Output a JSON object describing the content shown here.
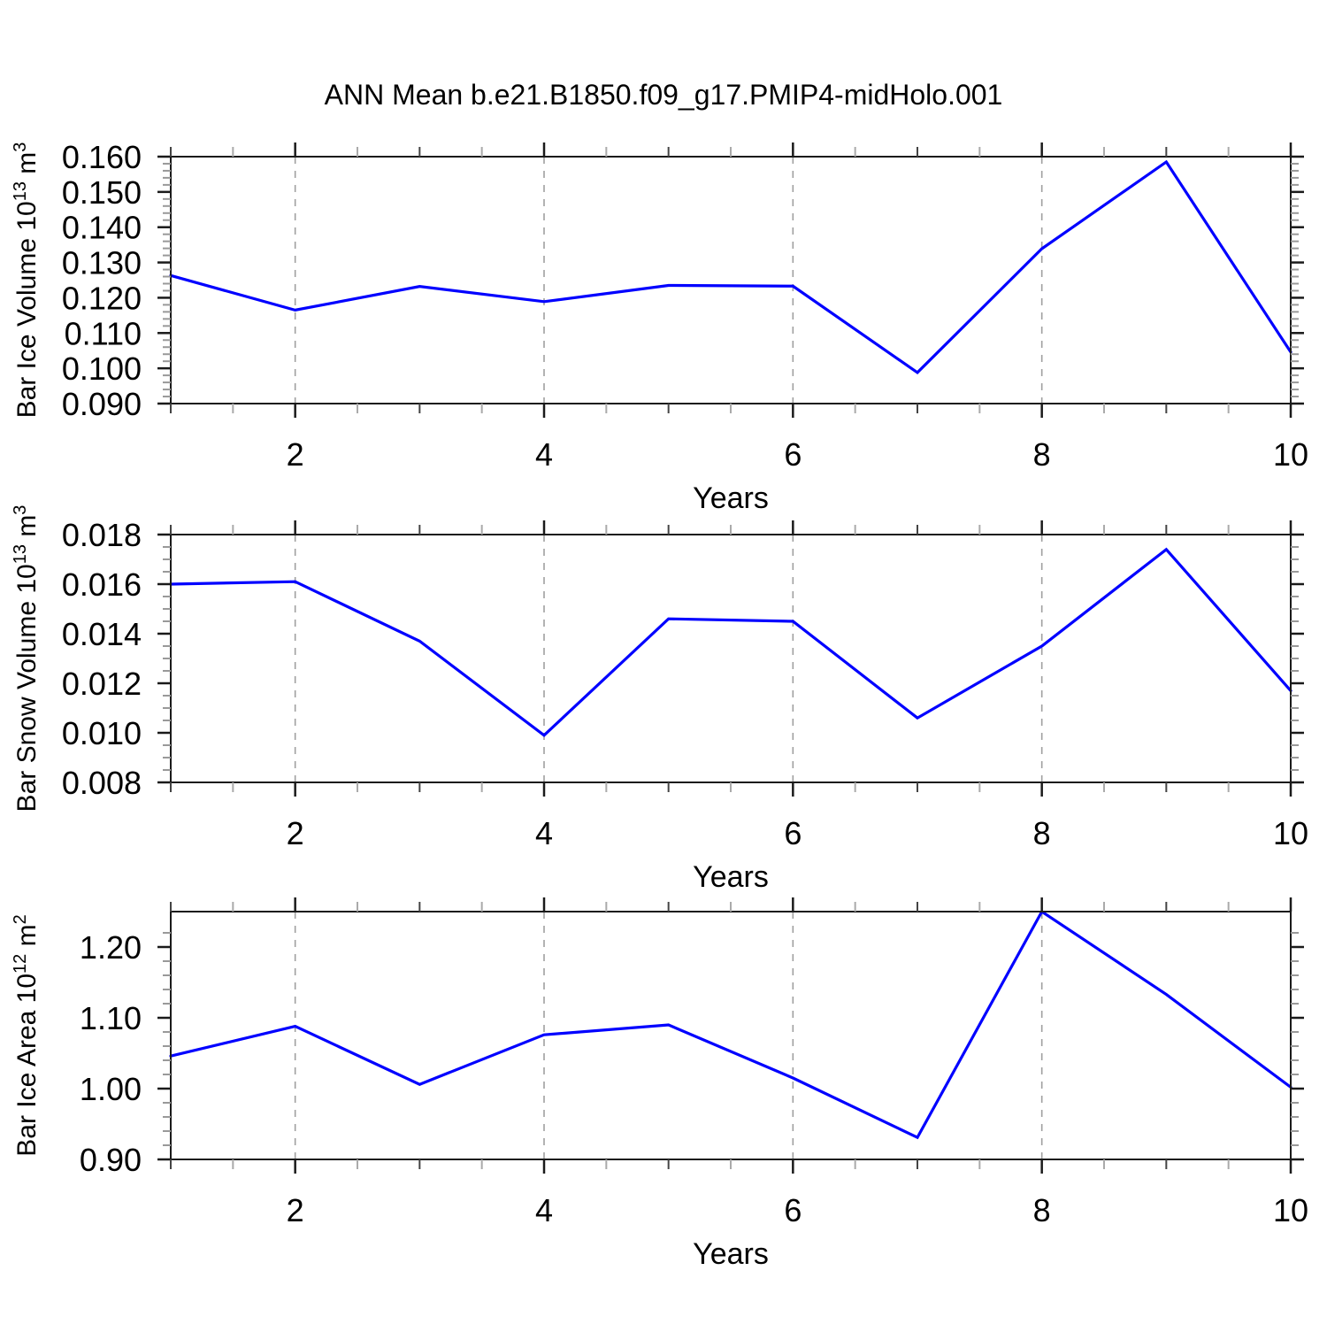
{
  "title": "ANN Mean b.e21.B1850.f09_g17.PMIP4-midHolo.001",
  "colors": {
    "line": "#0000ff",
    "grid": "#a0a0a0",
    "axis": "#1a1a1a",
    "minor_tick": "#999999",
    "half_tick": "#aaaaaa",
    "odd_tick": "#444444"
  },
  "chart_data": [
    {
      "type": "line",
      "x": [
        1,
        2,
        3,
        4,
        5,
        6,
        7,
        8,
        9,
        10
      ],
      "values": [
        0.1263,
        0.1165,
        0.1232,
        0.1189,
        0.1235,
        0.1233,
        0.0988,
        0.1339,
        0.1585,
        0.1046
      ],
      "ylabel": "Bar Ice Volume 10^13 m^3",
      "ylabel_segments": [
        {
          "text": "Bar Ice Volume 10",
          "sup": false
        },
        {
          "text": "13",
          "sup": true
        },
        {
          "text": " m",
          "sup": false
        },
        {
          "text": "3",
          "sup": true
        }
      ],
      "xlabel": "Years",
      "xlim": [
        1,
        10
      ],
      "ylim": [
        0.09,
        0.16
      ],
      "yticks": [
        0.09,
        0.1,
        0.11,
        0.12,
        0.13,
        0.14,
        0.15,
        0.16
      ],
      "yticklabels": [
        "0.090",
        "0.100",
        "0.110",
        "0.120",
        "0.130",
        "0.140",
        "0.150",
        "0.160"
      ],
      "y_minor_step": 0.002,
      "xticks": [
        2,
        4,
        6,
        8,
        10
      ],
      "xticklabels": [
        "2",
        "4",
        "6",
        "8",
        "10"
      ],
      "grid_x": [
        2,
        4,
        6,
        8
      ],
      "grid": true,
      "legend": "none"
    },
    {
      "type": "line",
      "x": [
        1,
        2,
        3,
        4,
        5,
        6,
        7,
        8,
        9,
        10
      ],
      "values": [
        0.016,
        0.0161,
        0.0137,
        0.0099,
        0.0146,
        0.0145,
        0.0106,
        0.0135,
        0.0174,
        0.0117
      ],
      "ylabel": "Bar Snow Volume 10^13 m^3",
      "ylabel_segments": [
        {
          "text": "Bar Snow Volume 10",
          "sup": false
        },
        {
          "text": "13",
          "sup": true
        },
        {
          "text": " m",
          "sup": false
        },
        {
          "text": "3",
          "sup": true
        }
      ],
      "xlabel": "Years",
      "xlim": [
        1,
        10
      ],
      "ylim": [
        0.008,
        0.018
      ],
      "yticks": [
        0.008,
        0.01,
        0.012,
        0.014,
        0.016,
        0.018
      ],
      "yticklabels": [
        "0.008",
        "0.010",
        "0.012",
        "0.014",
        "0.016",
        "0.018"
      ],
      "y_minor_step": 0.0005,
      "xticks": [
        2,
        4,
        6,
        8,
        10
      ],
      "xticklabels": [
        "2",
        "4",
        "6",
        "8",
        "10"
      ],
      "grid_x": [
        2,
        4,
        6,
        8
      ],
      "grid": true,
      "legend": "none"
    },
    {
      "type": "line",
      "x": [
        1,
        2,
        3,
        4,
        5,
        6,
        7,
        8,
        9,
        10
      ],
      "values": [
        1.046,
        1.088,
        1.006,
        1.076,
        1.09,
        1.015,
        0.931,
        1.25,
        1.133,
        1.002
      ],
      "ylabel": "Bar Ice Area 10^12 m^2",
      "ylabel_segments": [
        {
          "text": "Bar Ice Area 10",
          "sup": false
        },
        {
          "text": "12",
          "sup": true
        },
        {
          "text": " m",
          "sup": false
        },
        {
          "text": "2",
          "sup": true
        }
      ],
      "xlabel": "Years",
      "xlim": [
        1,
        10
      ],
      "ylim": [
        0.9,
        1.25
      ],
      "yticks": [
        0.9,
        1.0,
        1.1,
        1.2
      ],
      "yticklabels": [
        "0.90",
        "1.00",
        "1.10",
        "1.20"
      ],
      "y_minor_step": 0.02,
      "xticks": [
        2,
        4,
        6,
        8,
        10
      ],
      "xticklabels": [
        "2",
        "4",
        "6",
        "8",
        "10"
      ],
      "grid_x": [
        2,
        4,
        6,
        8
      ],
      "grid": true,
      "legend": "none"
    }
  ]
}
